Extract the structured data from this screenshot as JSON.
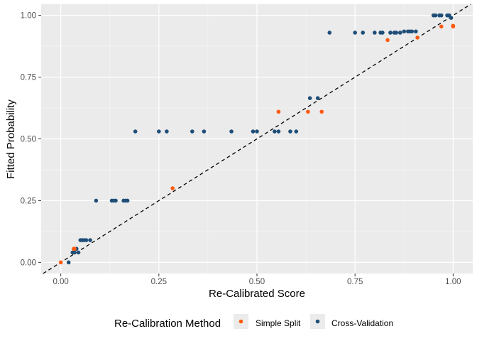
{
  "chart_data": {
    "type": "scatter",
    "title": "",
    "xlabel": "Re-Calibrated Score",
    "ylabel": "Fitted Probability",
    "xlim": [
      -0.05,
      1.05
    ],
    "ylim": [
      -0.045,
      1.045
    ],
    "x_ticks": [
      0.0,
      0.25,
      0.5,
      0.75,
      1.0
    ],
    "x_tick_labels": [
      "0.00",
      "0.25",
      "0.50",
      "0.75",
      "1.00"
    ],
    "y_ticks": [
      0.0,
      0.25,
      0.5,
      0.75,
      1.0
    ],
    "y_tick_labels": [
      "0.00",
      "0.25",
      "0.50",
      "0.75",
      "1.00"
    ],
    "grid": true,
    "reference_line": {
      "type": "diagonal",
      "style": "dashed",
      "slope": 1,
      "intercept": 0
    },
    "legend": {
      "title": "Re-Calibration Method",
      "position": "bottom"
    },
    "series": [
      {
        "name": "Simple Split",
        "color": "#ff5a0e",
        "points": [
          [
            0.0,
            0.0
          ],
          [
            0.033,
            0.055
          ],
          [
            0.035,
            0.055
          ],
          [
            0.285,
            0.3
          ],
          [
            0.555,
            0.61
          ],
          [
            0.63,
            0.61
          ],
          [
            0.665,
            0.61
          ],
          [
            0.833,
            0.9
          ],
          [
            0.909,
            0.91
          ],
          [
            0.97,
            0.955
          ],
          [
            1.0,
            0.955
          ],
          [
            1.0,
            0.958
          ]
        ]
      },
      {
        "name": "Cross-Validation",
        "color": "#1f4e79",
        "points": [
          [
            0.02,
            0.0
          ],
          [
            0.03,
            0.04
          ],
          [
            0.035,
            0.04
          ],
          [
            0.045,
            0.04
          ],
          [
            0.04,
            0.055
          ],
          [
            0.05,
            0.09
          ],
          [
            0.055,
            0.09
          ],
          [
            0.06,
            0.09
          ],
          [
            0.065,
            0.09
          ],
          [
            0.075,
            0.09
          ],
          [
            0.09,
            0.25
          ],
          [
            0.13,
            0.25
          ],
          [
            0.135,
            0.25
          ],
          [
            0.14,
            0.25
          ],
          [
            0.16,
            0.25
          ],
          [
            0.165,
            0.25
          ],
          [
            0.17,
            0.25
          ],
          [
            0.19,
            0.53
          ],
          [
            0.25,
            0.53
          ],
          [
            0.27,
            0.53
          ],
          [
            0.335,
            0.53
          ],
          [
            0.365,
            0.53
          ],
          [
            0.435,
            0.53
          ],
          [
            0.49,
            0.53
          ],
          [
            0.5,
            0.53
          ],
          [
            0.545,
            0.53
          ],
          [
            0.555,
            0.53
          ],
          [
            0.585,
            0.53
          ],
          [
            0.6,
            0.53
          ],
          [
            0.635,
            0.665
          ],
          [
            0.655,
            0.665
          ],
          [
            0.685,
            0.93
          ],
          [
            0.75,
            0.93
          ],
          [
            0.77,
            0.93
          ],
          [
            0.8,
            0.93
          ],
          [
            0.815,
            0.93
          ],
          [
            0.82,
            0.93
          ],
          [
            0.84,
            0.93
          ],
          [
            0.85,
            0.93
          ],
          [
            0.855,
            0.93
          ],
          [
            0.865,
            0.93
          ],
          [
            0.875,
            0.935
          ],
          [
            0.885,
            0.935
          ],
          [
            0.89,
            0.935
          ],
          [
            0.895,
            0.935
          ],
          [
            0.905,
            0.935
          ],
          [
            0.95,
            1.0
          ],
          [
            0.955,
            1.0
          ],
          [
            0.965,
            1.0
          ],
          [
            0.97,
            1.0
          ],
          [
            0.985,
            1.0
          ],
          [
            0.99,
            1.0
          ],
          [
            0.995,
            0.99
          ]
        ]
      }
    ]
  }
}
